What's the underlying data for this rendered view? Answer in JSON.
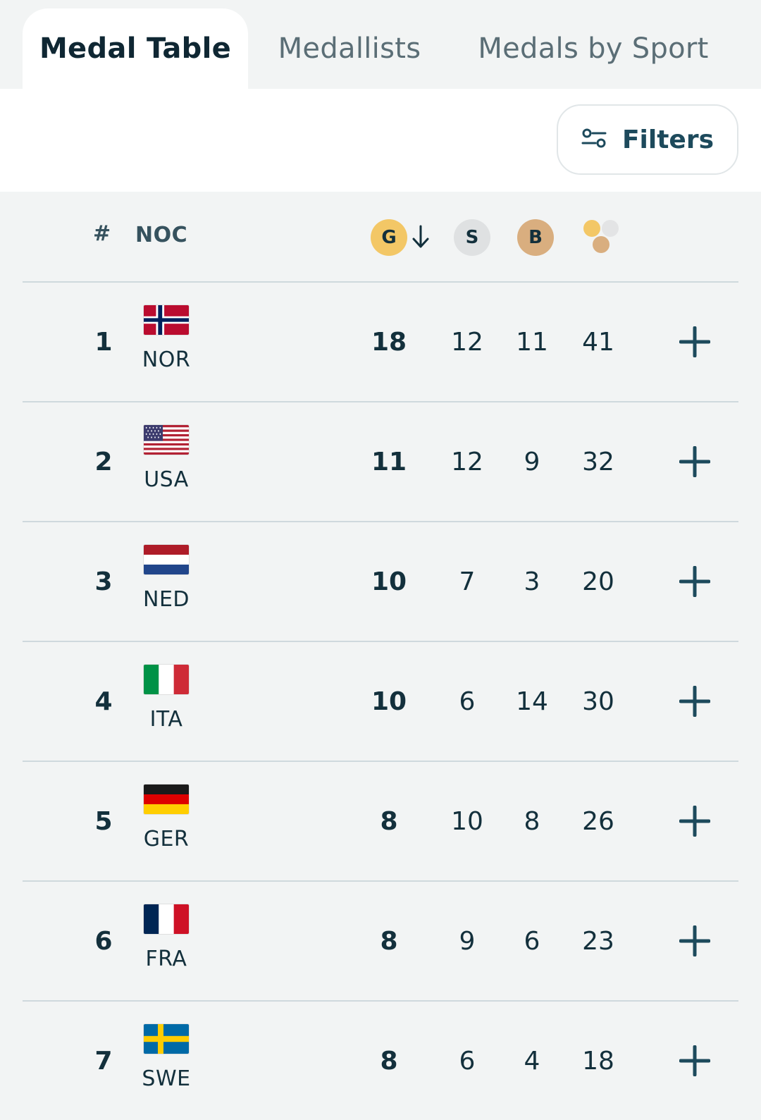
{
  "tabs": [
    {
      "label": "Medal Table",
      "active": true
    },
    {
      "label": "Medallists",
      "active": false
    },
    {
      "label": "Medals by Sport",
      "active": false
    }
  ],
  "filter": {
    "label": "Filters",
    "icon": "filters-icon"
  },
  "table": {
    "headers": {
      "rank": "#",
      "noc": "NOC",
      "gold": "G",
      "silver": "S",
      "bronze": "B",
      "sort_icon": "arrow-down-icon",
      "total_icon": "medals-total-icon"
    },
    "rows": [
      {
        "rank": "1",
        "noc": "NOR",
        "flag": "norway-flag",
        "gold": "18",
        "silver": "12",
        "bronze": "11",
        "total": "41"
      },
      {
        "rank": "2",
        "noc": "USA",
        "flag": "usa-flag",
        "gold": "11",
        "silver": "12",
        "bronze": "9",
        "total": "32"
      },
      {
        "rank": "3",
        "noc": "NED",
        "flag": "netherlands-flag",
        "gold": "10",
        "silver": "7",
        "bronze": "3",
        "total": "20"
      },
      {
        "rank": "4",
        "noc": "ITA",
        "flag": "italy-flag",
        "gold": "10",
        "silver": "6",
        "bronze": "14",
        "total": "30"
      },
      {
        "rank": "5",
        "noc": "GER",
        "flag": "germany-flag",
        "gold": "8",
        "silver": "10",
        "bronze": "8",
        "total": "26"
      },
      {
        "rank": "6",
        "noc": "FRA",
        "flag": "france-flag",
        "gold": "8",
        "silver": "9",
        "bronze": "6",
        "total": "23"
      },
      {
        "rank": "7",
        "noc": "SWE",
        "flag": "sweden-flag",
        "gold": "8",
        "silver": "6",
        "bronze": "4",
        "total": "18"
      }
    ]
  },
  "colors": {
    "gold": "#f3c766",
    "silver": "#dfe1e2",
    "bronze": "#d9ae7f",
    "accent": "#1d4a5c",
    "background": "#f2f4f4"
  }
}
